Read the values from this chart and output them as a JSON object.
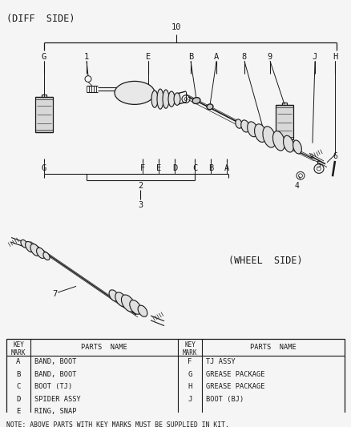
{
  "bg_color": "#f5f5f5",
  "line_color": "#1a1a1a",
  "diff_side_label": "(DIFF  SIDE)",
  "wheel_side_label": "(WHEEL  SIDE)",
  "note_text": "NOTE: ABOVE PARTS WITH KEY MARKS MUST BE SUPPLIED IN KIT.",
  "table_left_keys": [
    "A",
    "B",
    "C",
    "D",
    "E"
  ],
  "table_left_parts": [
    "BAND, BOOT",
    "BAND, BOOT",
    "BOOT (TJ)",
    "SPIDER ASSY",
    "RING, SNAP"
  ],
  "table_right_keys": [
    "F",
    "G",
    "H",
    "J"
  ],
  "table_right_parts": [
    "TJ ASSY",
    "GREASE PACKAGE",
    "GREASE PACKAGE",
    "BOOT (BJ)"
  ],
  "figsize": [
    4.38,
    5.33
  ],
  "dpi": 100
}
